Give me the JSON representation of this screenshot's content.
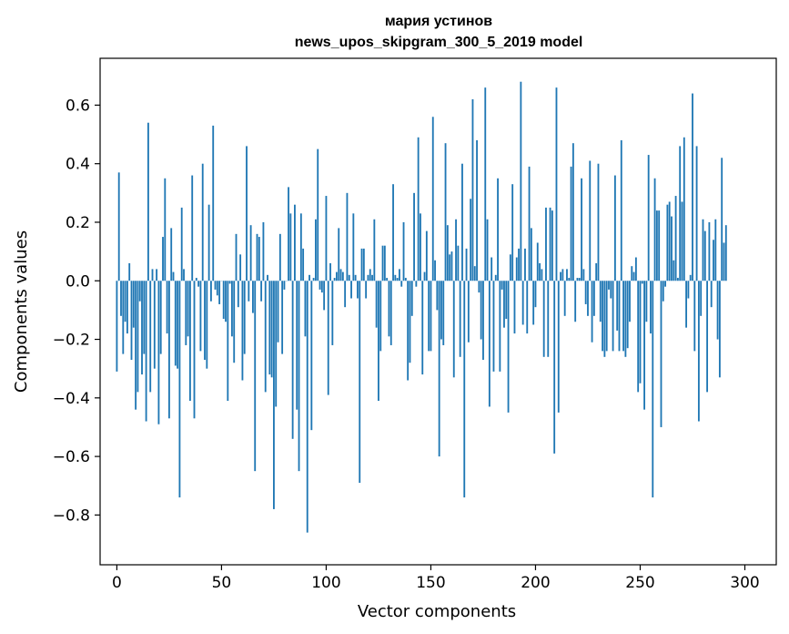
{
  "chart_data": {
    "type": "bar",
    "title_line1": "мария устинов",
    "title_line2": "news_upos_skipgram_300_5_2019 model",
    "xlabel": "Vector components",
    "ylabel": "Components values",
    "xlim": [
      -8,
      315
    ],
    "ylim": [
      -0.97,
      0.76
    ],
    "xticks": [
      0,
      50,
      100,
      150,
      200,
      250,
      300
    ],
    "xtick_labels": [
      "0",
      "50",
      "100",
      "150",
      "200",
      "250",
      "300"
    ],
    "yticks": [
      -0.8,
      -0.6,
      -0.4,
      -0.2,
      0.0,
      0.2,
      0.4,
      0.6
    ],
    "ytick_labels": [
      "−0.8",
      "−0.6",
      "−0.4",
      "−0.2",
      "0.0",
      "0.2",
      "0.4",
      "0.6"
    ],
    "bar_color": "#1f77b4",
    "values": [
      -0.31,
      0.37,
      -0.12,
      -0.25,
      -0.14,
      -0.18,
      0.06,
      -0.27,
      -0.16,
      -0.44,
      -0.38,
      -0.07,
      -0.32,
      -0.25,
      -0.48,
      0.54,
      -0.38,
      0.04,
      -0.3,
      0.04,
      -0.49,
      -0.25,
      0.15,
      0.35,
      -0.18,
      -0.47,
      0.18,
      0.03,
      -0.29,
      -0.3,
      -0.74,
      0.25,
      0.04,
      -0.22,
      -0.19,
      -0.41,
      0.36,
      -0.47,
      0.01,
      -0.02,
      -0.24,
      0.4,
      -0.27,
      -0.3,
      0.26,
      -0.07,
      0.53,
      -0.03,
      -0.05,
      -0.08,
      0.0,
      -0.13,
      -0.14,
      -0.41,
      -0.01,
      -0.19,
      -0.28,
      0.16,
      -0.09,
      0.09,
      -0.34,
      -0.25,
      0.46,
      -0.07,
      0.19,
      -0.11,
      -0.65,
      0.16,
      0.15,
      -0.07,
      0.2,
      -0.38,
      0.02,
      -0.32,
      -0.33,
      -0.78,
      -0.43,
      -0.21,
      0.16,
      -0.25,
      -0.03,
      0.0,
      0.32,
      0.23,
      -0.54,
      0.26,
      -0.44,
      -0.65,
      0.23,
      0.11,
      -0.19,
      -0.86,
      0.02,
      -0.51,
      0.01,
      0.21,
      0.45,
      -0.03,
      -0.04,
      -0.1,
      0.29,
      -0.39,
      0.06,
      -0.22,
      0.01,
      0.03,
      0.18,
      0.04,
      0.03,
      -0.09,
      0.3,
      0.02,
      -0.06,
      0.23,
      0.02,
      -0.06,
      -0.69,
      0.11,
      0.11,
      -0.06,
      0.02,
      0.04,
      0.02,
      0.21,
      -0.16,
      -0.41,
      -0.24,
      0.12,
      0.12,
      0.01,
      -0.19,
      -0.22,
      0.33,
      0.02,
      0.01,
      0.04,
      -0.02,
      0.2,
      0.01,
      -0.34,
      -0.28,
      -0.12,
      0.3,
      -0.02,
      0.49,
      0.23,
      -0.32,
      0.03,
      0.17,
      -0.24,
      -0.24,
      0.56,
      0.07,
      -0.1,
      -0.6,
      -0.2,
      -0.22,
      0.47,
      0.19,
      0.09,
      0.1,
      -0.33,
      0.21,
      0.12,
      -0.26,
      0.4,
      -0.74,
      0.11,
      -0.21,
      0.28,
      0.62,
      0.05,
      0.48,
      -0.04,
      -0.2,
      -0.27,
      0.66,
      0.21,
      -0.43,
      0.08,
      -0.31,
      0.02,
      0.35,
      -0.31,
      -0.03,
      -0.16,
      -0.13,
      -0.45,
      0.09,
      0.33,
      -0.18,
      0.08,
      0.11,
      0.68,
      -0.15,
      0.11,
      -0.18,
      0.39,
      0.18,
      -0.15,
      -0.09,
      0.13,
      0.06,
      0.04,
      -0.26,
      0.25,
      -0.26,
      0.25,
      0.24,
      -0.59,
      0.66,
      -0.45,
      0.03,
      0.04,
      -0.12,
      0.04,
      0.01,
      0.39,
      0.47,
      -0.14,
      0.01,
      0.01,
      0.35,
      0.04,
      -0.08,
      -0.12,
      0.41,
      -0.21,
      -0.12,
      0.06,
      0.4,
      -0.14,
      -0.24,
      -0.26,
      -0.24,
      -0.03,
      -0.06,
      -0.24,
      0.36,
      -0.17,
      -0.24,
      0.48,
      -0.24,
      -0.26,
      -0.23,
      -0.14,
      0.05,
      0.03,
      0.08,
      -0.38,
      -0.35,
      -0.01,
      -0.44,
      -0.14,
      0.43,
      -0.18,
      -0.74,
      0.35,
      0.24,
      0.24,
      -0.5,
      -0.07,
      -0.02,
      0.26,
      0.27,
      0.22,
      0.07,
      0.29,
      0.01,
      0.46,
      0.27,
      0.49,
      -0.16,
      -0.06,
      0.02,
      0.64,
      -0.24,
      0.46,
      -0.48,
      -0.12,
      0.21,
      0.17,
      -0.38,
      0.2,
      -0.09,
      0.14,
      0.21,
      -0.2,
      -0.33,
      0.42,
      0.13,
      0.19
    ]
  }
}
